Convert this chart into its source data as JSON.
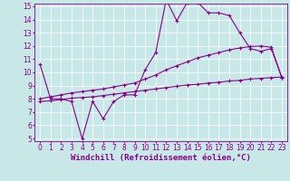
{
  "x": [
    0,
    1,
    2,
    3,
    4,
    5,
    6,
    7,
    8,
    9,
    10,
    11,
    12,
    13,
    14,
    15,
    16,
    17,
    18,
    19,
    20,
    21,
    22,
    23
  ],
  "line1": [
    10.6,
    8.0,
    8.0,
    7.8,
    5.0,
    7.8,
    6.5,
    7.8,
    8.3,
    8.3,
    10.2,
    11.5,
    15.5,
    13.9,
    15.3,
    15.3,
    14.5,
    14.5,
    14.3,
    13.0,
    11.8,
    11.6,
    11.8,
    9.6
  ],
  "line2": [
    8.0,
    8.15,
    8.3,
    8.45,
    8.55,
    8.65,
    8.75,
    8.9,
    9.05,
    9.2,
    9.5,
    9.8,
    10.2,
    10.5,
    10.8,
    11.1,
    11.3,
    11.5,
    11.7,
    11.85,
    11.95,
    12.0,
    11.9,
    9.6
  ],
  "line3": [
    7.8,
    7.85,
    7.95,
    8.05,
    8.1,
    8.15,
    8.25,
    8.35,
    8.45,
    8.55,
    8.65,
    8.75,
    8.85,
    8.95,
    9.05,
    9.1,
    9.2,
    9.25,
    9.35,
    9.4,
    9.5,
    9.55,
    9.6,
    9.65
  ],
  "color": "#880088",
  "bg_color": "#c8e8e8",
  "grid_color": "#aacccc",
  "xlabel": "Windchill (Refroidissement éolien,°C)",
  "ylim": [
    5,
    15
  ],
  "xlim": [
    -0.5,
    23.5
  ],
  "yticks": [
    5,
    6,
    7,
    8,
    9,
    10,
    11,
    12,
    13,
    14,
    15
  ],
  "xticks": [
    0,
    1,
    2,
    3,
    4,
    5,
    6,
    7,
    8,
    9,
    10,
    11,
    12,
    13,
    14,
    15,
    16,
    17,
    18,
    19,
    20,
    21,
    22,
    23
  ],
  "tick_fontsize": 5.5,
  "xlabel_fontsize": 6.5,
  "lw": 0.8,
  "marker_size": 2.5
}
